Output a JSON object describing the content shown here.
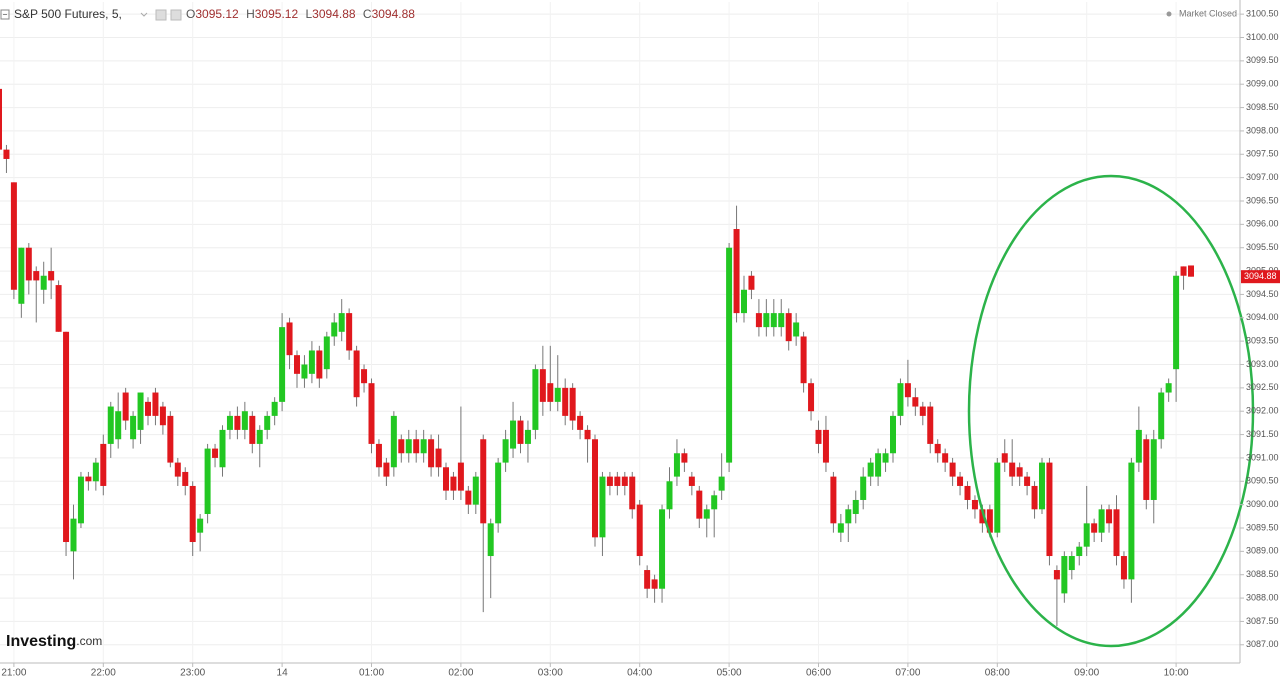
{
  "chart_data": {
    "type": "candlestick",
    "symbol": "S&P 500 Futures, 5,",
    "ohlc_labels": [
      "O",
      "H",
      "L",
      "C"
    ],
    "status": "Market Closed",
    "logo": {
      "brand": "Investing",
      "suffix": ".com"
    },
    "up_color": "#22c722",
    "down_color": "#e0181d",
    "grid": true,
    "ylim": [
      3086.61,
      3100.76
    ],
    "yticks": [
      {
        "value": 3087,
        "label": "3087.00"
      },
      {
        "value": 3087.5,
        "label": "3087.50"
      },
      {
        "value": 3088,
        "label": "3088.00"
      },
      {
        "value": 3088.5,
        "label": "3088.50"
      },
      {
        "value": 3089,
        "label": "3089.00"
      },
      {
        "value": 3089.5,
        "label": "3089.50"
      },
      {
        "value": 3090,
        "label": "3090.00"
      },
      {
        "value": 3090.5,
        "label": "3090.50"
      },
      {
        "value": 3091,
        "label": "3091.00"
      },
      {
        "value": 3091.5,
        "label": "3091.50"
      },
      {
        "value": 3092,
        "label": "3092.00"
      },
      {
        "value": 3092.5,
        "label": "3092.50"
      },
      {
        "value": 3093,
        "label": "3093.00"
      },
      {
        "value": 3093.5,
        "label": "3093.50"
      },
      {
        "value": 3094,
        "label": "3094.00"
      },
      {
        "value": 3094.5,
        "label": "3094.50"
      },
      {
        "value": 3095,
        "label": "3095.00"
      },
      {
        "value": 3095.5,
        "label": "3095.50"
      },
      {
        "value": 3096,
        "label": "3096.00"
      },
      {
        "value": 3096.5,
        "label": "3096.50"
      },
      {
        "value": 3097,
        "label": "3097.00"
      },
      {
        "value": 3097.5,
        "label": "3097.50"
      },
      {
        "value": 3098,
        "label": "3098.00"
      },
      {
        "value": 3098.5,
        "label": "3098.50"
      },
      {
        "value": 3099,
        "label": "3099.00"
      },
      {
        "value": 3099.5,
        "label": "3099.50"
      },
      {
        "value": 3100,
        "label": "3100.00"
      },
      {
        "value": 3100.5,
        "label": "3100.50"
      }
    ],
    "categories": [
      null,
      null,
      "21:00",
      null,
      null,
      null,
      null,
      null,
      null,
      null,
      null,
      null,
      null,
      null,
      "22:00",
      null,
      null,
      null,
      null,
      null,
      null,
      null,
      null,
      null,
      null,
      null,
      "23:00",
      null,
      null,
      null,
      null,
      null,
      null,
      null,
      null,
      null,
      null,
      null,
      "14",
      null,
      null,
      null,
      null,
      null,
      null,
      null,
      null,
      null,
      null,
      null,
      "01:00",
      null,
      null,
      null,
      null,
      null,
      null,
      null,
      null,
      null,
      null,
      null,
      "02:00",
      null,
      null,
      null,
      null,
      null,
      null,
      null,
      null,
      null,
      null,
      null,
      "03:00",
      null,
      null,
      null,
      null,
      null,
      null,
      null,
      null,
      null,
      null,
      null,
      "04:00",
      null,
      null,
      null,
      null,
      null,
      null,
      null,
      null,
      null,
      null,
      null,
      "05:00",
      null,
      null,
      null,
      null,
      null,
      null,
      null,
      null,
      null,
      null,
      null,
      "06:00",
      null,
      null,
      null,
      null,
      null,
      null,
      null,
      null,
      null,
      null,
      null,
      "07:00",
      null,
      null,
      null,
      null,
      null,
      null,
      null,
      null,
      null,
      null,
      null,
      "08:00",
      null,
      null,
      null,
      null,
      null,
      null,
      null,
      null,
      null,
      null,
      null,
      "09:00",
      null,
      null,
      null,
      null,
      null,
      null,
      null,
      null,
      null,
      null,
      null,
      "10:00",
      null,
      null
    ],
    "open": [
      3098.9,
      3097.6,
      3096.9,
      3094.3,
      3095.5,
      3095.0,
      3094.6,
      3095.0,
      3094.7,
      3093.7,
      3089.0,
      3089.6,
      3090.6,
      3090.5,
      3091.3,
      3091.3,
      3091.4,
      3092.4,
      3091.4,
      3091.6,
      3092.2,
      3092.4,
      3092.1,
      3091.9,
      3090.9,
      3090.7,
      3090.4,
      3089.4,
      3089.8,
      3091.2,
      3090.8,
      3091.6,
      3091.9,
      3091.6,
      3091.9,
      3091.3,
      3091.6,
      3091.9,
      3092.2,
      3093.9,
      3093.2,
      3092.7,
      3092.8,
      3093.3,
      3092.9,
      3093.6,
      3093.7,
      3094.1,
      3093.3,
      3092.9,
      3092.6,
      3091.3,
      3090.9,
      3090.8,
      3091.4,
      3091.1,
      3091.4,
      3091.1,
      3091.4,
      3091.2,
      3090.8,
      3090.6,
      3090.9,
      3090.3,
      3090.0,
      3091.4,
      3088.9,
      3089.6,
      3090.9,
      3091.2,
      3091.8,
      3091.3,
      3091.6,
      3092.9,
      3092.6,
      3092.2,
      3092.5,
      3092.5,
      3091.9,
      3091.6,
      3091.4,
      3089.3,
      3090.6,
      3090.6,
      3090.6,
      3090.6,
      3090.0,
      3088.6,
      3088.4,
      3088.2,
      3089.9,
      3090.6,
      3091.1,
      3090.6,
      3090.3,
      3089.7,
      3089.9,
      3090.3,
      3090.9,
      3095.9,
      3094.1,
      3094.9,
      3094.1,
      3093.8,
      3093.8,
      3093.8,
      3094.1,
      3093.6,
      3093.6,
      3092.6,
      3091.6,
      3091.6,
      3090.6,
      3089.4,
      3089.6,
      3089.8,
      3090.1,
      3090.6,
      3090.6,
      3090.9,
      3091.1,
      3091.9,
      3092.6,
      3092.3,
      3092.1,
      3092.1,
      3091.3,
      3091.1,
      3090.9,
      3090.6,
      3090.4,
      3090.1,
      3089.9,
      3089.9,
      3089.4,
      3091.1,
      3090.9,
      3090.8,
      3090.6,
      3090.4,
      3089.9,
      3090.9,
      3088.6,
      3088.1,
      3088.6,
      3088.9,
      3089.1,
      3089.6,
      3089.4,
      3089.9,
      3089.9,
      3088.9,
      3088.4,
      3090.9,
      3091.4,
      3090.1,
      3091.4,
      3092.4,
      3092.9,
      3095.1,
      3095.12
    ],
    "high": [
      3098.9,
      3097.7,
      3096.9,
      3095.5,
      3095.6,
      3095.1,
      3095.2,
      3095.5,
      3094.8,
      3093.7,
      3090.0,
      3090.7,
      3090.7,
      3091.0,
      3091.5,
      3092.2,
      3092.4,
      3092.5,
      3092.0,
      3092.4,
      3092.3,
      3092.5,
      3092.2,
      3092.0,
      3091.0,
      3090.8,
      3090.5,
      3089.8,
      3091.3,
      3091.3,
      3091.7,
      3092.0,
      3092.1,
      3092.2,
      3092.0,
      3091.7,
      3092.0,
      3092.3,
      3094.1,
      3094.0,
      3093.3,
      3093.2,
      3093.5,
      3093.4,
      3093.7,
      3094.1,
      3094.4,
      3094.2,
      3093.4,
      3093.0,
      3092.7,
      3091.4,
      3091.0,
      3092.0,
      3091.5,
      3091.6,
      3091.6,
      3091.6,
      3091.5,
      3091.5,
      3090.9,
      3090.7,
      3092.1,
      3090.4,
      3090.7,
      3091.5,
      3089.7,
      3091.0,
      3091.6,
      3092.2,
      3091.9,
      3091.8,
      3093.0,
      3093.4,
      3093.4,
      3093.2,
      3092.7,
      3092.6,
      3092.0,
      3091.7,
      3091.5,
      3090.7,
      3090.7,
      3090.7,
      3090.7,
      3090.7,
      3090.1,
      3088.7,
      3088.5,
      3090.0,
      3090.8,
      3091.4,
      3091.2,
      3090.7,
      3090.4,
      3090.0,
      3090.3,
      3091.1,
      3095.6,
      3096.4,
      3094.9,
      3095.0,
      3094.4,
      3094.4,
      3094.4,
      3094.4,
      3094.2,
      3094.1,
      3093.7,
      3092.7,
      3091.8,
      3091.9,
      3090.7,
      3089.8,
      3090.0,
      3090.3,
      3090.8,
      3091.0,
      3091.2,
      3091.2,
      3092.0,
      3092.7,
      3093.1,
      3092.5,
      3092.2,
      3092.2,
      3091.4,
      3091.2,
      3091.0,
      3090.7,
      3090.5,
      3090.2,
      3090.0,
      3090.0,
      3091.0,
      3091.4,
      3091.4,
      3090.9,
      3090.7,
      3090.5,
      3091.0,
      3091.0,
      3088.7,
      3089.0,
      3089.0,
      3089.2,
      3090.4,
      3089.7,
      3090.0,
      3090.0,
      3090.2,
      3089.0,
      3091.0,
      3092.1,
      3091.5,
      3091.6,
      3092.5,
      3092.7,
      3095.0,
      3095.1,
      3095.12
    ],
    "low": [
      3097.4,
      3097.1,
      3094.4,
      3094.0,
      3094.5,
      3093.9,
      3094.3,
      3094.4,
      3093.7,
      3088.9,
      3088.4,
      3089.5,
      3090.3,
      3090.3,
      3090.2,
      3091.0,
      3091.2,
      3091.6,
      3091.2,
      3091.3,
      3091.7,
      3091.7,
      3091.5,
      3090.8,
      3090.4,
      3090.2,
      3088.9,
      3089.0,
      3089.6,
      3090.8,
      3090.6,
      3091.4,
      3091.4,
      3091.4,
      3091.1,
      3090.8,
      3091.4,
      3091.7,
      3092.0,
      3092.9,
      3092.5,
      3092.5,
      3092.6,
      3092.5,
      3092.7,
      3093.4,
      3093.5,
      3093.1,
      3092.1,
      3092.4,
      3091.1,
      3090.6,
      3090.4,
      3090.6,
      3090.9,
      3090.9,
      3090.9,
      3090.9,
      3090.6,
      3090.6,
      3090.1,
      3090.1,
      3090.1,
      3089.8,
      3089.8,
      3087.7,
      3088.0,
      3089.4,
      3090.7,
      3091.0,
      3091.1,
      3090.9,
      3091.4,
      3091.9,
      3092.0,
      3092.0,
      3091.7,
      3091.6,
      3091.4,
      3090.9,
      3089.1,
      3088.9,
      3090.2,
      3090.2,
      3090.2,
      3089.7,
      3088.7,
      3088.0,
      3087.9,
      3087.9,
      3089.7,
      3090.4,
      3090.7,
      3090.2,
      3089.5,
      3089.3,
      3089.3,
      3090.1,
      3090.7,
      3093.9,
      3093.9,
      3094.4,
      3093.6,
      3093.6,
      3093.6,
      3093.6,
      3093.3,
      3093.4,
      3092.4,
      3091.8,
      3091.1,
      3090.7,
      3089.4,
      3089.2,
      3089.2,
      3089.6,
      3089.9,
      3090.4,
      3090.4,
      3090.7,
      3090.9,
      3091.7,
      3092.1,
      3091.9,
      3091.7,
      3091.1,
      3090.9,
      3090.7,
      3090.4,
      3090.2,
      3089.9,
      3089.7,
      3089.4,
      3089.3,
      3089.3,
      3090.7,
      3090.4,
      3090.4,
      3090.2,
      3089.7,
      3089.8,
      3088.7,
      3087.4,
      3087.9,
      3088.4,
      3088.7,
      3088.9,
      3089.2,
      3089.2,
      3089.4,
      3088.7,
      3088.2,
      3087.9,
      3090.7,
      3089.9,
      3089.6,
      3091.2,
      3092.2,
      3092.2,
      3094.6,
      3094.88
    ],
    "close": [
      3097.6,
      3097.4,
      3094.6,
      3095.5,
      3094.8,
      3094.8,
      3094.9,
      3094.8,
      3093.7,
      3089.2,
      3089.7,
      3090.6,
      3090.5,
      3090.9,
      3090.4,
      3092.1,
      3092.0,
      3091.8,
      3091.9,
      3092.4,
      3091.9,
      3091.9,
      3091.7,
      3090.9,
      3090.6,
      3090.4,
      3089.2,
      3089.7,
      3091.2,
      3091.0,
      3091.6,
      3091.9,
      3091.6,
      3092.0,
      3091.3,
      3091.6,
      3091.9,
      3092.2,
      3093.8,
      3093.2,
      3092.8,
      3093.0,
      3093.3,
      3092.7,
      3093.6,
      3093.9,
      3094.1,
      3093.3,
      3092.3,
      3092.6,
      3091.3,
      3090.8,
      3090.6,
      3091.9,
      3091.1,
      3091.4,
      3091.1,
      3091.4,
      3090.8,
      3090.8,
      3090.3,
      3090.3,
      3090.3,
      3090.0,
      3090.6,
      3089.6,
      3089.6,
      3090.9,
      3091.4,
      3091.8,
      3091.3,
      3091.6,
      3092.9,
      3092.2,
      3092.2,
      3092.5,
      3091.9,
      3091.8,
      3091.6,
      3091.4,
      3089.3,
      3090.6,
      3090.4,
      3090.4,
      3090.4,
      3089.9,
      3088.9,
      3088.2,
      3088.2,
      3089.9,
      3090.5,
      3091.1,
      3090.9,
      3090.4,
      3089.7,
      3089.9,
      3090.2,
      3090.6,
      3095.5,
      3094.1,
      3094.6,
      3094.6,
      3093.8,
      3094.1,
      3094.1,
      3094.1,
      3093.5,
      3093.9,
      3092.6,
      3092.0,
      3091.3,
      3090.9,
      3089.6,
      3089.6,
      3089.9,
      3090.1,
      3090.6,
      3090.9,
      3091.1,
      3091.1,
      3091.9,
      3092.6,
      3092.3,
      3092.1,
      3091.9,
      3091.3,
      3091.1,
      3090.9,
      3090.6,
      3090.4,
      3090.1,
      3089.9,
      3089.6,
      3089.4,
      3090.9,
      3090.9,
      3090.6,
      3090.6,
      3090.4,
      3089.9,
      3090.9,
      3088.9,
      3088.4,
      3088.9,
      3088.9,
      3089.1,
      3089.6,
      3089.4,
      3089.9,
      3089.6,
      3088.9,
      3088.4,
      3090.9,
      3091.6,
      3090.1,
      3091.4,
      3092.4,
      3092.6,
      3094.9,
      3094.9,
      3094.88
    ]
  }
}
